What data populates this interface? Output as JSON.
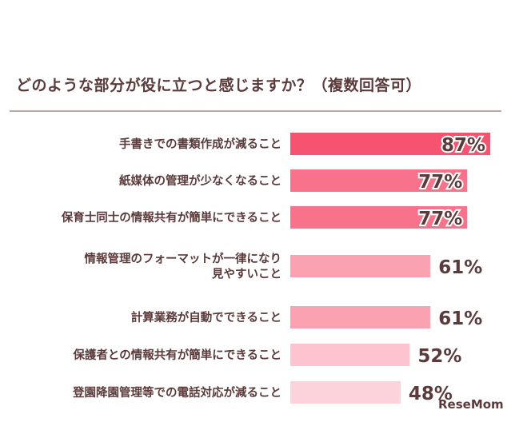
{
  "chart_data": {
    "type": "bar",
    "orientation": "horizontal",
    "title": "どのような部分が役に立つと感じますか？（複数回答可）",
    "categories": [
      [
        "手書きでの書類作成が減ること"
      ],
      [
        "紙媒体の管理が少なくなること"
      ],
      [
        "保育士同士の情報共有が簡単にできること"
      ],
      [
        "情報管理のフォーマットが一律になり",
        "見やすいこと"
      ],
      [
        "計算業務が自動でできること"
      ],
      [
        "保護者との情報共有が簡単にできること"
      ],
      [
        "登園降園管理等での電話対応が減ること"
      ]
    ],
    "values": [
      87,
      77,
      77,
      61,
      61,
      52,
      48
    ],
    "value_labels": [
      "87%",
      "77%",
      "77%",
      "61%",
      "61%",
      "52%",
      "48%"
    ],
    "colors": [
      "#f5536f",
      "#f7728a",
      "#f7728a",
      "#fba2b2",
      "#fba2b2",
      "#fdc4cf",
      "#fdd3db"
    ],
    "xlim": [
      0,
      100
    ],
    "grid": false,
    "legend": "none"
  },
  "watermark": "ReseMom"
}
